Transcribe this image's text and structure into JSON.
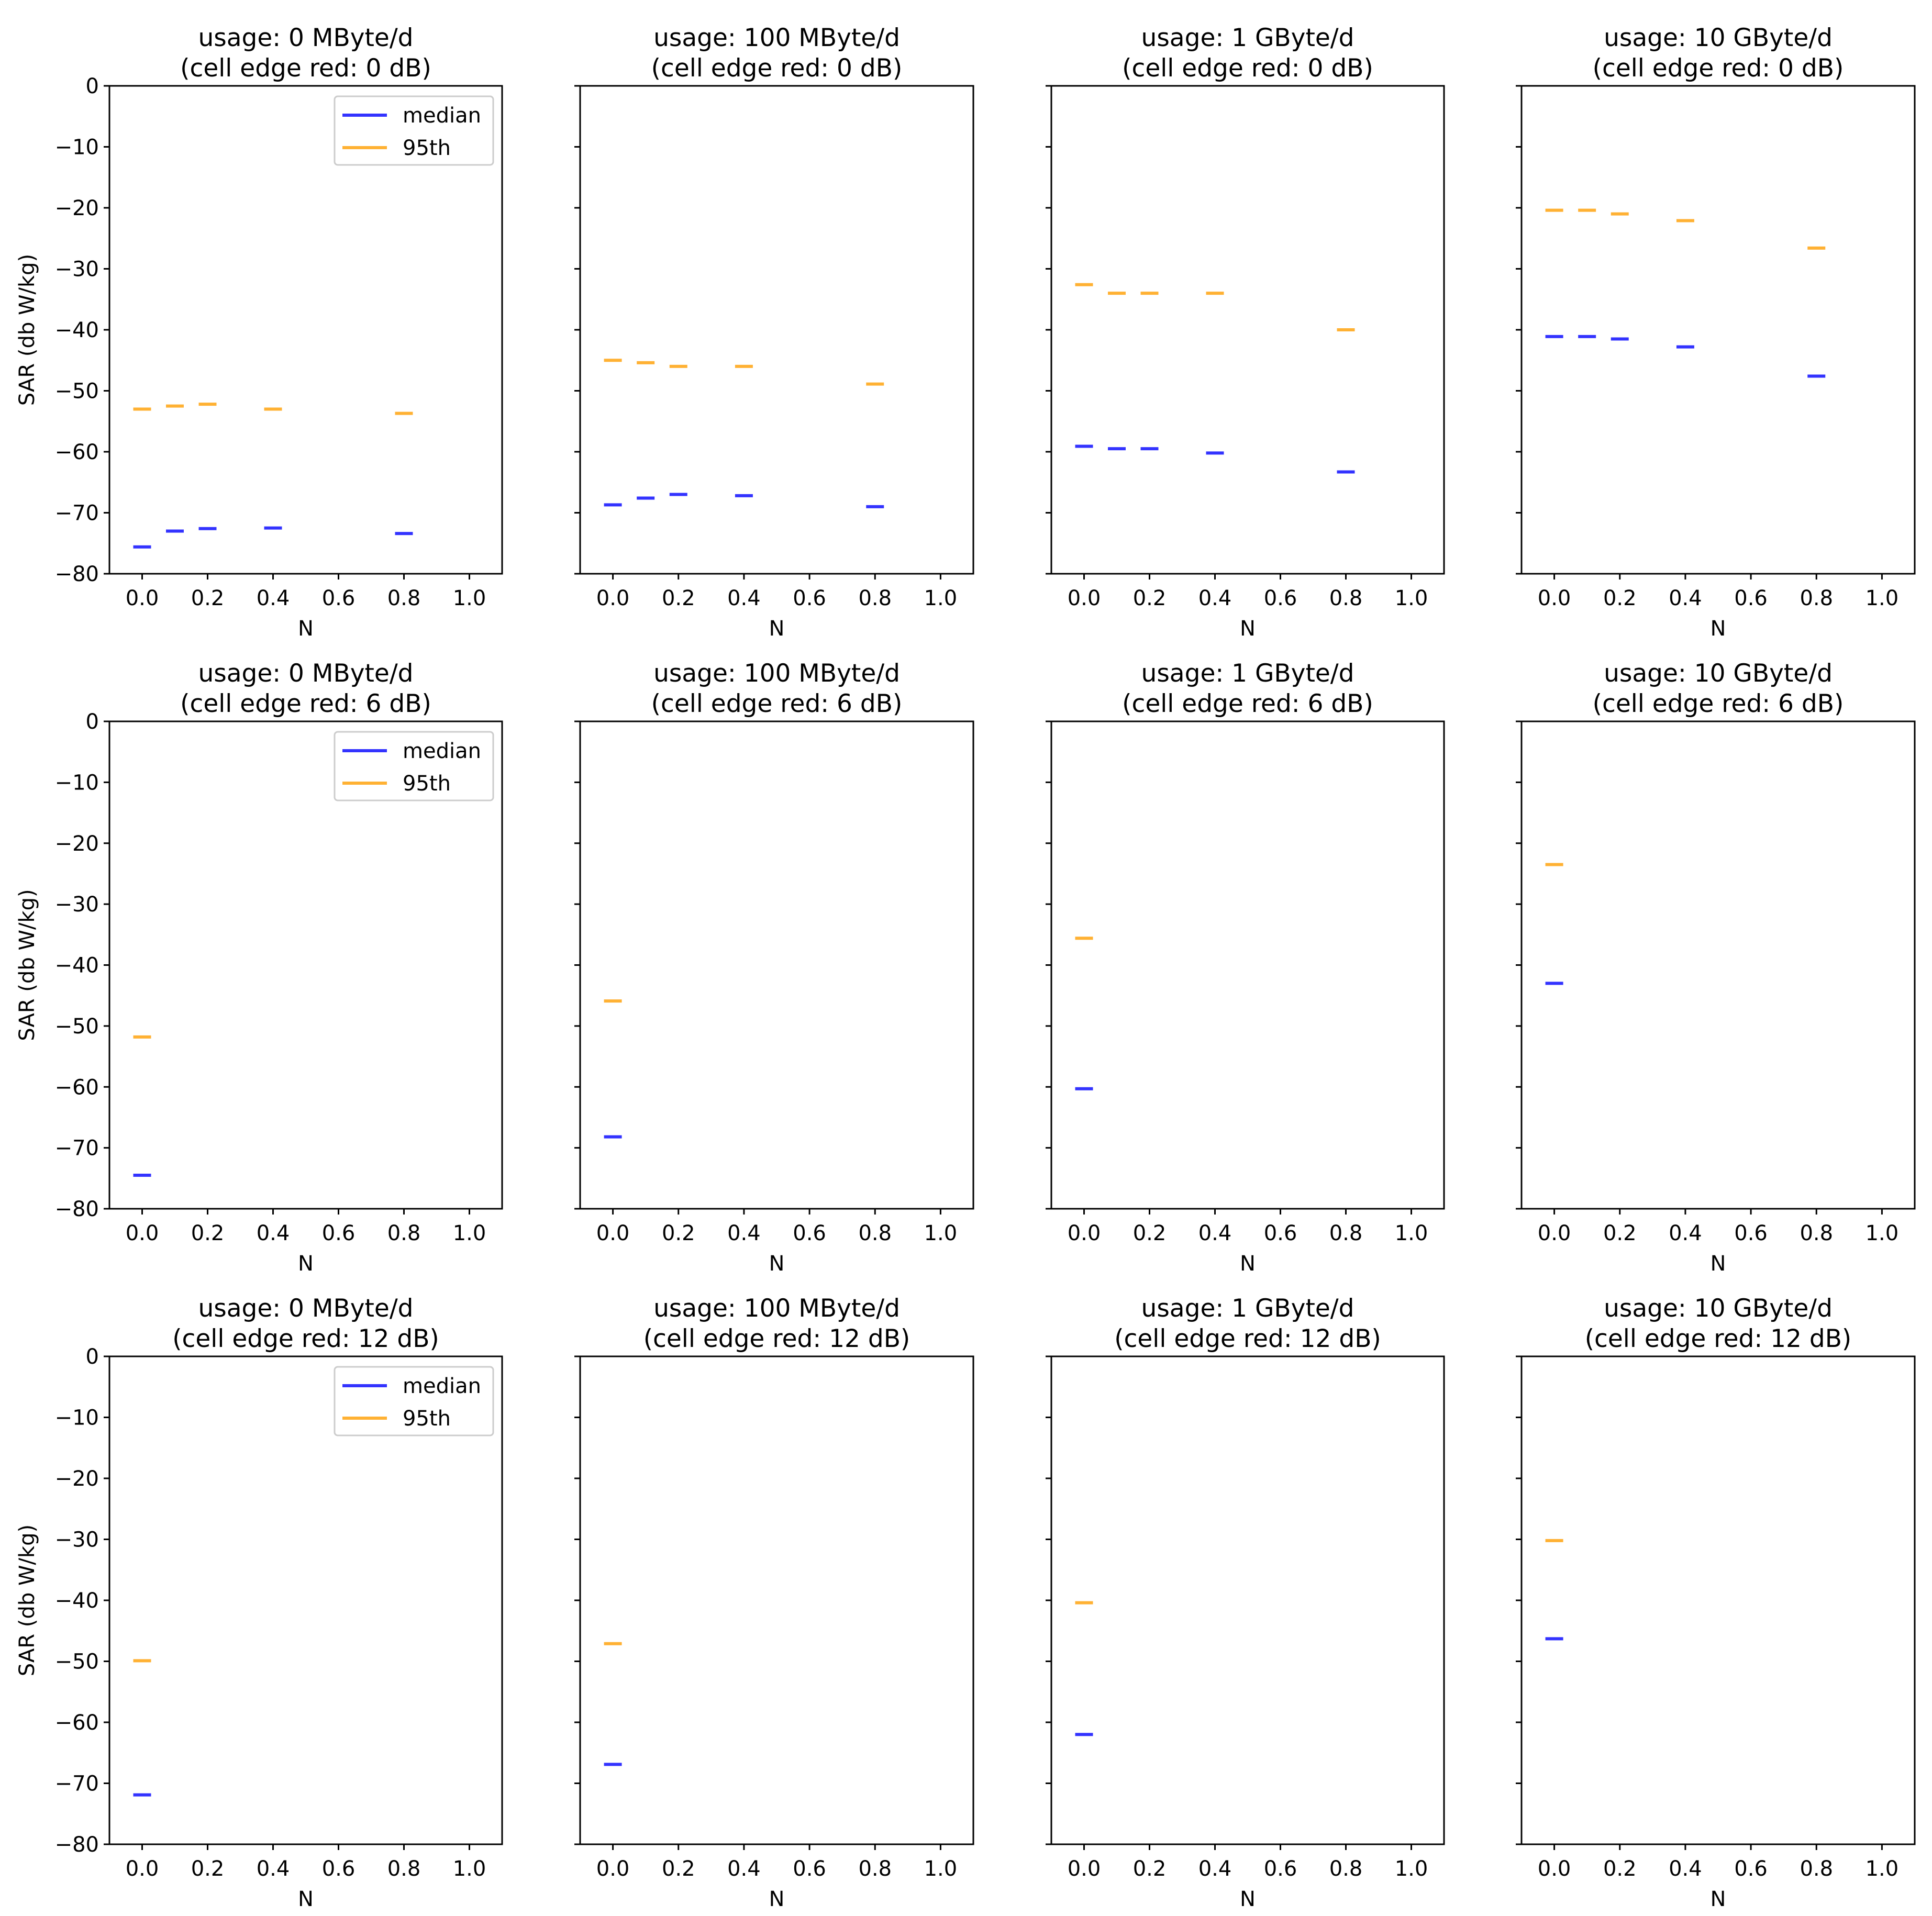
{
  "colors": {
    "median": "#3333ff",
    "p95": "#ffb133"
  },
  "chart_data": [
    {
      "type": "scatter",
      "marker": "hline",
      "title_line1": "usage: 0 MByte/d",
      "title_line2": "(cell edge red: 0 dB)",
      "xlabel": "N",
      "ylabel": "SAR (db W/kg)",
      "xlim": [
        -0.1,
        1.1
      ],
      "ylim": [
        -80,
        0
      ],
      "xticks": [
        "0.0",
        "0.2",
        "0.4",
        "0.6",
        "0.8",
        "1.0"
      ],
      "yticks": [
        "0",
        "−10",
        "−20",
        "−30",
        "−40",
        "−50",
        "−60",
        "−70",
        "−80"
      ],
      "legend": {
        "position": "upper right",
        "entries": [
          "median",
          "95th"
        ]
      },
      "series": [
        {
          "name": "median",
          "x": [
            0.0,
            0.1,
            0.2,
            0.4,
            0.8
          ],
          "values": [
            -75.6,
            -73.0,
            -72.6,
            -72.5,
            -73.4
          ]
        },
        {
          "name": "95th",
          "x": [
            0.0,
            0.1,
            0.2,
            0.4,
            0.8
          ],
          "values": [
            -53.0,
            -52.5,
            -52.2,
            -53.0,
            -53.7
          ]
        }
      ]
    },
    {
      "type": "scatter",
      "marker": "hline",
      "title_line1": "usage: 100 MByte/d",
      "title_line2": "(cell edge red: 0 dB)",
      "xlabel": "N",
      "xlim": [
        -0.1,
        1.1
      ],
      "ylim": [
        -80,
        0
      ],
      "xticks": [
        "0.0",
        "0.2",
        "0.4",
        "0.6",
        "0.8",
        "1.0"
      ],
      "series": [
        {
          "name": "median",
          "x": [
            0.0,
            0.1,
            0.2,
            0.4,
            0.8
          ],
          "values": [
            -68.7,
            -67.6,
            -67.0,
            -67.2,
            -69.0
          ]
        },
        {
          "name": "95th",
          "x": [
            0.0,
            0.1,
            0.2,
            0.4,
            0.8
          ],
          "values": [
            -45.0,
            -45.4,
            -46.0,
            -46.0,
            -48.9
          ]
        }
      ]
    },
    {
      "type": "scatter",
      "marker": "hline",
      "title_line1": "usage: 1 GByte/d",
      "title_line2": "(cell edge red: 0 dB)",
      "xlabel": "N",
      "xlim": [
        -0.1,
        1.1
      ],
      "ylim": [
        -80,
        0
      ],
      "xticks": [
        "0.0",
        "0.2",
        "0.4",
        "0.6",
        "0.8",
        "1.0"
      ],
      "series": [
        {
          "name": "median",
          "x": [
            0.0,
            0.1,
            0.2,
            0.4,
            0.8
          ],
          "values": [
            -59.1,
            -59.5,
            -59.5,
            -60.2,
            -63.3
          ]
        },
        {
          "name": "95th",
          "x": [
            0.0,
            0.1,
            0.2,
            0.4,
            0.8
          ],
          "values": [
            -32.6,
            -34.0,
            -34.0,
            -34.0,
            -40.0
          ]
        }
      ]
    },
    {
      "type": "scatter",
      "marker": "hline",
      "title_line1": "usage: 10 GByte/d",
      "title_line2": "(cell edge red: 0 dB)",
      "xlabel": "N",
      "xlim": [
        -0.1,
        1.1
      ],
      "ylim": [
        -80,
        0
      ],
      "xticks": [
        "0.0",
        "0.2",
        "0.4",
        "0.6",
        "0.8",
        "1.0"
      ],
      "series": [
        {
          "name": "median",
          "x": [
            0.0,
            0.1,
            0.2,
            0.4,
            0.8
          ],
          "values": [
            -41.1,
            -41.1,
            -41.5,
            -42.8,
            -47.6
          ]
        },
        {
          "name": "95th",
          "x": [
            0.0,
            0.1,
            0.2,
            0.4,
            0.8
          ],
          "values": [
            -20.4,
            -20.4,
            -21.0,
            -22.1,
            -26.6
          ]
        }
      ]
    },
    {
      "type": "scatter",
      "marker": "hline",
      "title_line1": "usage: 0 MByte/d",
      "title_line2": "(cell edge red: 6 dB)",
      "xlabel": "N",
      "ylabel": "SAR (db W/kg)",
      "xlim": [
        -0.1,
        1.1
      ],
      "ylim": [
        -80,
        0
      ],
      "xticks": [
        "0.0",
        "0.2",
        "0.4",
        "0.6",
        "0.8",
        "1.0"
      ],
      "yticks": [
        "0",
        "−10",
        "−20",
        "−30",
        "−40",
        "−50",
        "−60",
        "−70",
        "−80"
      ],
      "legend": {
        "position": "upper right",
        "entries": [
          "median",
          "95th"
        ]
      },
      "series": [
        {
          "name": "median",
          "x": [
            0.0
          ],
          "values": [
            -74.5
          ]
        },
        {
          "name": "95th",
          "x": [
            0.0
          ],
          "values": [
            -51.8
          ]
        }
      ]
    },
    {
      "type": "scatter",
      "marker": "hline",
      "title_line1": "usage: 100 MByte/d",
      "title_line2": "(cell edge red: 6 dB)",
      "xlabel": "N",
      "xlim": [
        -0.1,
        1.1
      ],
      "ylim": [
        -80,
        0
      ],
      "xticks": [
        "0.0",
        "0.2",
        "0.4",
        "0.6",
        "0.8",
        "1.0"
      ],
      "series": [
        {
          "name": "median",
          "x": [
            0.0
          ],
          "values": [
            -68.2
          ]
        },
        {
          "name": "95th",
          "x": [
            0.0
          ],
          "values": [
            -45.9
          ]
        }
      ]
    },
    {
      "type": "scatter",
      "marker": "hline",
      "title_line1": "usage: 1 GByte/d",
      "title_line2": "(cell edge red: 6 dB)",
      "xlabel": "N",
      "xlim": [
        -0.1,
        1.1
      ],
      "ylim": [
        -80,
        0
      ],
      "xticks": [
        "0.0",
        "0.2",
        "0.4",
        "0.6",
        "0.8",
        "1.0"
      ],
      "series": [
        {
          "name": "median",
          "x": [
            0.0
          ],
          "values": [
            -60.3
          ]
        },
        {
          "name": "95th",
          "x": [
            0.0
          ],
          "values": [
            -35.6
          ]
        }
      ]
    },
    {
      "type": "scatter",
      "marker": "hline",
      "title_line1": "usage: 10 GByte/d",
      "title_line2": "(cell edge red: 6 dB)",
      "xlabel": "N",
      "xlim": [
        -0.1,
        1.1
      ],
      "ylim": [
        -80,
        0
      ],
      "xticks": [
        "0.0",
        "0.2",
        "0.4",
        "0.6",
        "0.8",
        "1.0"
      ],
      "series": [
        {
          "name": "median",
          "x": [
            0.0
          ],
          "values": [
            -43.0
          ]
        },
        {
          "name": "95th",
          "x": [
            0.0
          ],
          "values": [
            -23.5
          ]
        }
      ]
    },
    {
      "type": "scatter",
      "marker": "hline",
      "title_line1": "usage: 0 MByte/d",
      "title_line2": "(cell edge red: 12 dB)",
      "xlabel": "N",
      "ylabel": "SAR (db W/kg)",
      "xlim": [
        -0.1,
        1.1
      ],
      "ylim": [
        -80,
        0
      ],
      "xticks": [
        "0.0",
        "0.2",
        "0.4",
        "0.6",
        "0.8",
        "1.0"
      ],
      "yticks": [
        "0",
        "−10",
        "−20",
        "−30",
        "−40",
        "−50",
        "−60",
        "−70",
        "−80"
      ],
      "legend": {
        "position": "upper right",
        "entries": [
          "median",
          "95th"
        ]
      },
      "series": [
        {
          "name": "median",
          "x": [
            0.0
          ],
          "values": [
            -71.9
          ]
        },
        {
          "name": "95th",
          "x": [
            0.0
          ],
          "values": [
            -49.9
          ]
        }
      ]
    },
    {
      "type": "scatter",
      "marker": "hline",
      "title_line1": "usage: 100 MByte/d",
      "title_line2": "(cell edge red: 12 dB)",
      "xlabel": "N",
      "xlim": [
        -0.1,
        1.1
      ],
      "ylim": [
        -80,
        0
      ],
      "xticks": [
        "0.0",
        "0.2",
        "0.4",
        "0.6",
        "0.8",
        "1.0"
      ],
      "series": [
        {
          "name": "median",
          "x": [
            0.0
          ],
          "values": [
            -66.9
          ]
        },
        {
          "name": "95th",
          "x": [
            0.0
          ],
          "values": [
            -47.1
          ]
        }
      ]
    },
    {
      "type": "scatter",
      "marker": "hline",
      "title_line1": "usage: 1 GByte/d",
      "title_line2": "(cell edge red: 12 dB)",
      "xlabel": "N",
      "xlim": [
        -0.1,
        1.1
      ],
      "ylim": [
        -80,
        0
      ],
      "xticks": [
        "0.0",
        "0.2",
        "0.4",
        "0.6",
        "0.8",
        "1.0"
      ],
      "series": [
        {
          "name": "median",
          "x": [
            0.0
          ],
          "values": [
            -62.0
          ]
        },
        {
          "name": "95th",
          "x": [
            0.0
          ],
          "values": [
            -40.4
          ]
        }
      ]
    },
    {
      "type": "scatter",
      "marker": "hline",
      "title_line1": "usage: 10 GByte/d",
      "title_line2": "(cell edge red: 12 dB)",
      "xlabel": "N",
      "xlim": [
        -0.1,
        1.1
      ],
      "ylim": [
        -80,
        0
      ],
      "xticks": [
        "0.0",
        "0.2",
        "0.4",
        "0.6",
        "0.8",
        "1.0"
      ],
      "series": [
        {
          "name": "median",
          "x": [
            0.0
          ],
          "values": [
            -46.3
          ]
        },
        {
          "name": "95th",
          "x": [
            0.0
          ],
          "values": [
            -30.2
          ]
        }
      ]
    }
  ]
}
